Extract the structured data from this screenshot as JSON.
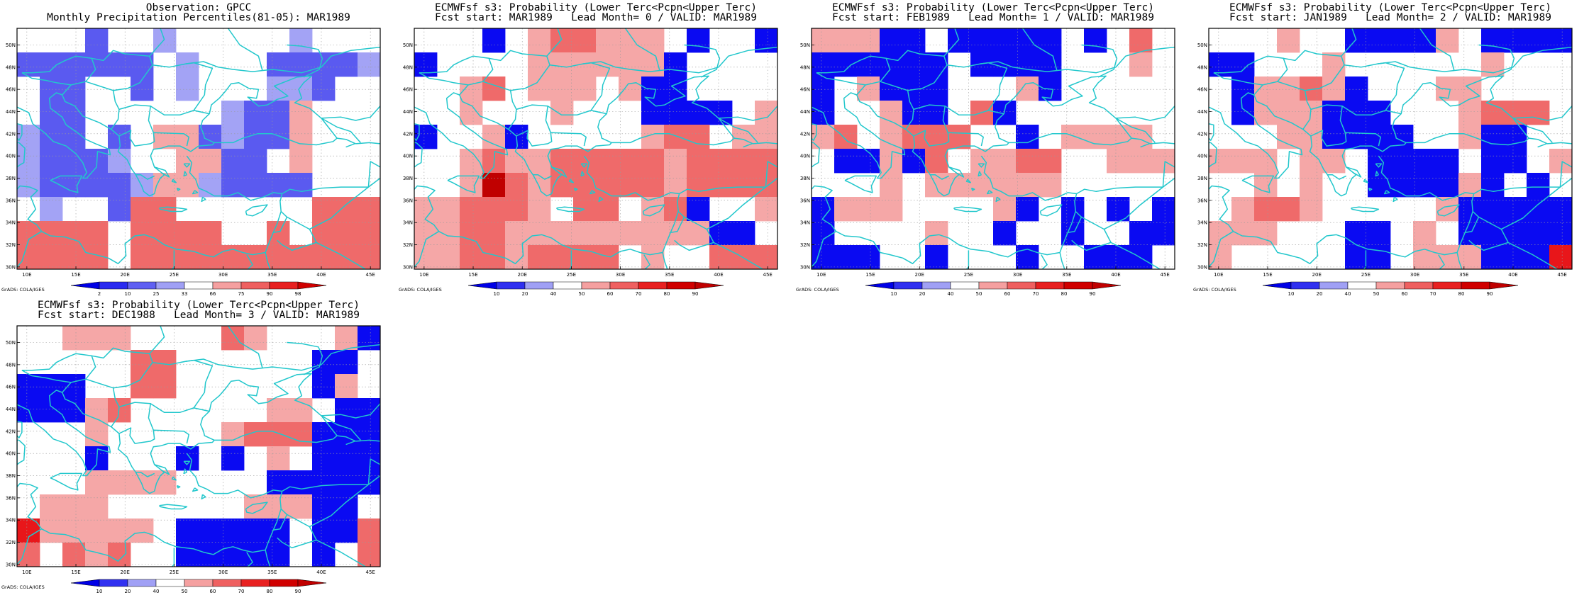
{
  "map_common": {
    "lon_ticks": [
      "10E",
      "15E",
      "20E",
      "25E",
      "30E",
      "35E",
      "40E",
      "45E"
    ],
    "lat_ticks": [
      "30N",
      "32N",
      "34N",
      "36N",
      "38N",
      "40N",
      "42N",
      "44N",
      "46N",
      "48N",
      "50N"
    ],
    "coast_color": "#22c7cc",
    "grid_lines": "dotted",
    "credit": "GrADS: COLA/IGES"
  },
  "colors": {
    "dark_blue": "#0a0af2",
    "mid_blue": "#5a5af0",
    "light_blue": "#a3a3f5",
    "pink": "#f5a7a7",
    "salmon": "#ef6a6a",
    "red": "#e8161a",
    "dark_red": "#c00000",
    "white": "#ffffff"
  },
  "panels": [
    {
      "id": "obs",
      "title_line1": "Observation: GPCC",
      "title_line2": "Monthly Precipitation Percentiles(81-05): MAR1989",
      "colorbar_labels": [
        "2",
        "10",
        "25",
        "33",
        "66",
        "75",
        "90",
        "98"
      ],
      "colorbar_colors": [
        "#0000e6",
        "#2a2af0",
        "#6060f2",
        "#a0a0f5",
        "#ffffff",
        "#f5a0a0",
        "#ef6060",
        "#e82020",
        "#d00000"
      ]
    },
    {
      "id": "lead0",
      "title_line1": "ECMWFsf s3: Probability (Lower Terc<Pcpn<Upper Terc)",
      "title_line2": "Fcst start: MAR1989   Lead Month= 0 / VALID: MAR1989",
      "colorbar_labels": [
        "10",
        "20",
        "40",
        "50",
        "60",
        "70",
        "80",
        "90"
      ],
      "colorbar_colors": [
        "#0000e6",
        "#3030f0",
        "#a0a0f5",
        "#ffffff",
        "#f5a0a0",
        "#ef6060",
        "#e82020",
        "#d00000",
        "#c00000"
      ]
    },
    {
      "id": "lead1",
      "title_line1": "ECMWFsf s3: Probability (Lower Terc<Pcpn<Upper Terc)",
      "title_line2": "Fcst start: FEB1989   Lead Month= 1 / VALID: MAR1989",
      "colorbar_labels": [
        "10",
        "20",
        "40",
        "50",
        "60",
        "70",
        "80",
        "90"
      ],
      "colorbar_colors": [
        "#0000e6",
        "#3030f0",
        "#a0a0f5",
        "#ffffff",
        "#f5a0a0",
        "#ef6060",
        "#e82020",
        "#d00000",
        "#c00000"
      ]
    },
    {
      "id": "lead2",
      "title_line1": "ECMWFsf s3: Probability (Lower Terc<Pcpn<Upper Terc)",
      "title_line2": "Fcst start: JAN1989   Lead Month= 2 / VALID: MAR1989",
      "colorbar_labels": [
        "10",
        "20",
        "40",
        "50",
        "60",
        "70",
        "80",
        "90"
      ],
      "colorbar_colors": [
        "#0000e6",
        "#3030f0",
        "#a0a0f5",
        "#ffffff",
        "#f5a0a0",
        "#ef6060",
        "#e82020",
        "#d00000",
        "#c00000"
      ]
    },
    {
      "id": "lead3",
      "title_line1": "ECMWFsf s3: Probability (Lower Terc<Pcpn<Upper Terc)",
      "title_line2": "Fcst start: DEC1988   Lead Month= 3 / VALID: MAR1989",
      "colorbar_labels": [
        "10",
        "20",
        "40",
        "50",
        "60",
        "70",
        "80",
        "90"
      ],
      "colorbar_colors": [
        "#0000e6",
        "#3030f0",
        "#a0a0f5",
        "#ffffff",
        "#f5a0a0",
        "#ef6060",
        "#e82020",
        "#d00000",
        "#c00000"
      ]
    }
  ],
  "grids": {
    "obs": [
      "wwwMmwLwwwwwLwrw",
      "MMMMMMwLwwwMMMML",
      "wMMwwMwLwwwLLMww",
      "wMMwwwwwwLMMpwww",
      "LMMwMwppMLMMpwww",
      "LMMMLwwppMMwpwww",
      "LMMMMLppLMMMMwww",
      "wLwwMSSwwwwwwSSS",
      "SSSSwSSSSwwSwSSS",
      "SSSSwSSSSSSSSSSS"
    ],
    "lead0": [
      "wwwBwpSSpppwBwwB",
      "BwwwwppppppBwwww",
      "wwpSwpppwpBBwwww",
      "wwpwwwpwwwBBBBwp",
      "BwwpBwwwwwpSSwpp",
      "wwpSppSSSSSpSSSS",
      "wwpDSpSSSSSpSSSS",
      "ppSSSpwSSwpSBwwp",
      "ppSSpppppppppBBw",
      "ppSSpSSSSwpwwSSS"
    ],
    "lead1": [
      "pppBBwBBBBBwBwSw",
      "BBBBBBwBBBBwwwpw",
      "BwpBBBwwwpBwwwww",
      "BwwpBBwSBwwwwwww",
      "pSwpSSSwwBwppppw",
      "wBBpBSwppSSwwppp",
      "wwwpwppppppwwwww",
      "BpppwwwwpBwBwBwB",
      "BwwwwpwwBwwBwwBB",
      "BBBwwBwwwBwwBBBw"
    ],
    "lead2": [
      "wwwpwwBBBBpwBBBB",
      "BBwwwpwwwwwwpwww",
      "wBppSpBwwwppwwww",
      "wBpppBBBwwwpSSSw",
      "wwwppBBBBwwpBBww",
      "pppwppwBBBBwBBwp",
      "wwpwpwwBBBBpBwBw",
      "wpSSpwwwwwpBBBBB",
      "pppwwwBBwpwBBBBB",
      "pwwwwwBBwpppBBBR"
    ],
    "lead3": [
      "wwpppwwwwSpwwwpB",
      "wwwwwSSwwwwwwBBw",
      "BBBwwSSwwwwwwBpw",
      "BBBpSwwwwwwppwBB",
      "wwwpwwwwwpSSSBBB",
      "wwwBwwwBwBwpwBBB",
      "wwwppppwwwwBBBBB",
      "wpppwwwwwwpppBBw",
      "RpppppwBBBBBwBBS",
      "SwSpSwwBBBBBwBwS"
    ]
  }
}
